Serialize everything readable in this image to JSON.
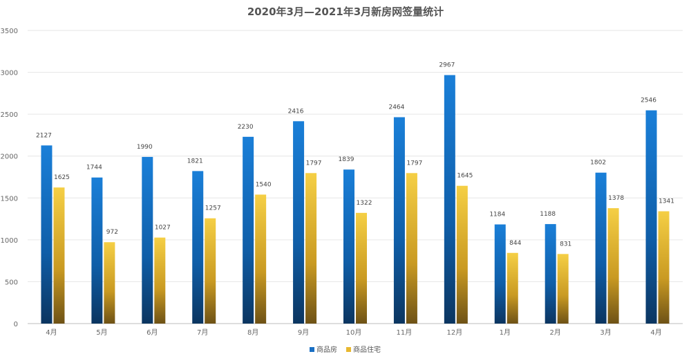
{
  "chart_data": {
    "type": "bar",
    "title": "2020年3月—2021年3月新房网签量统计",
    "categories": [
      "4月",
      "5月",
      "6月",
      "7月",
      "8月",
      "9月",
      "10月",
      "11月",
      "12月",
      "1月",
      "2月",
      "3月",
      "4月"
    ],
    "series": [
      {
        "name": "商品房",
        "values": [
          2127,
          1744,
          1990,
          1821,
          2230,
          2416,
          1839,
          2464,
          2967,
          1184,
          1188,
          1802,
          2546
        ],
        "color": "#1a6fc4"
      },
      {
        "name": "商品住宅",
        "values": [
          1625,
          972,
          1027,
          1257,
          1540,
          1797,
          1322,
          1797,
          1645,
          844,
          831,
          1378,
          1341
        ],
        "color": "#e8b830"
      }
    ],
    "ylim": [
      0,
      3500
    ],
    "yticks": [
      0,
      500,
      1000,
      1500,
      2000,
      2500,
      3000,
      3500
    ],
    "grid": true,
    "legend": "bottom-center"
  }
}
